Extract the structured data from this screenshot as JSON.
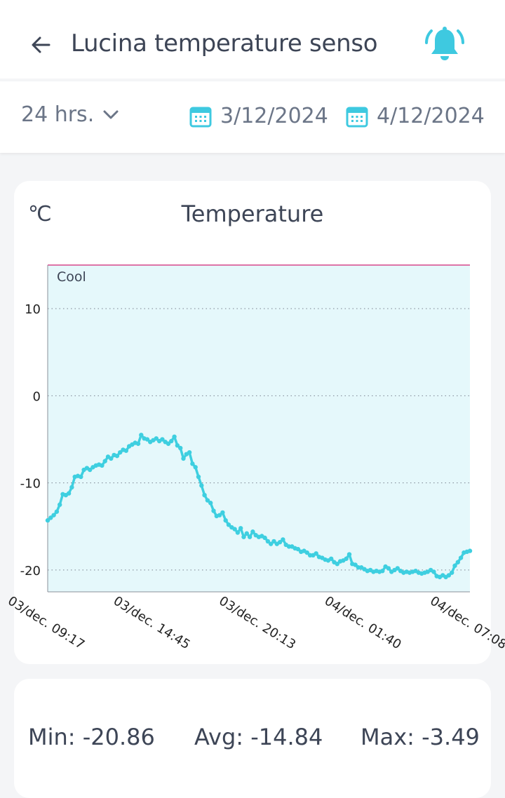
{
  "header": {
    "title": "Lucina temperature senso",
    "back_icon": "arrow-left-icon",
    "alert_icon": "bell-icon",
    "alert_color": "#3ec9e0"
  },
  "filters": {
    "range_label": "24 hrs.",
    "start_date": "3/12/2024",
    "end_date": "4/12/2024",
    "icon_color": "#3ec9e0"
  },
  "chart": {
    "unit": "℃",
    "title": "Temperature"
  },
  "chart_data": {
    "type": "line",
    "title": "Temperature",
    "ylabel": "℃",
    "ylim": [
      -22.5,
      15
    ],
    "yticks": [
      10,
      0,
      -10,
      -20
    ],
    "x_ticks": [
      "03/dec. 09:17",
      "03/dec. 14:45",
      "03/dec. 20:13",
      "04/dec. 01:40",
      "04/dec. 07:08"
    ],
    "zone": {
      "label": "Cool",
      "from": -22.5,
      "to": 15,
      "fill": "#e5f8fb",
      "limit_line_color": "#d6478a"
    },
    "line_color": "#3ecfe0",
    "grid": "dotted horizontal",
    "series": [
      {
        "values": [
          -14.3,
          -14.0,
          -13.7,
          -13.3,
          -12.5,
          -11.3,
          -11.4,
          -11.2,
          -10.5,
          -9.3,
          -9.2,
          -9.3,
          -8.5,
          -8.3,
          -8.5,
          -8.2,
          -8.0,
          -7.9,
          -8.0,
          -7.5,
          -7.0,
          -7.2,
          -6.8,
          -6.9,
          -6.5,
          -6.2,
          -6.3,
          -5.8,
          -5.6,
          -5.4,
          -5.5,
          -4.5,
          -4.9,
          -5.0,
          -5.3,
          -5.1,
          -4.9,
          -5.2,
          -5.0,
          -5.3,
          -5.5,
          -5.2,
          -4.7,
          -5.7,
          -6.0,
          -7.2,
          -6.7,
          -6.5,
          -7.8,
          -8.2,
          -9.3,
          -10.3,
          -11.4,
          -12.0,
          -12.3,
          -13.2,
          -13.8,
          -13.7,
          -13.4,
          -14.3,
          -14.8,
          -15.1,
          -15.3,
          -15.7,
          -15.2,
          -16.2,
          -15.8,
          -16.2,
          -15.6,
          -16.0,
          -16.2,
          -16.1,
          -16.3,
          -16.7,
          -17.0,
          -16.7,
          -17.0,
          -16.8,
          -16.5,
          -17.1,
          -17.3,
          -17.3,
          -17.5,
          -17.6,
          -17.9,
          -17.8,
          -18.0,
          -18.3,
          -18.3,
          -18.1,
          -18.5,
          -18.6,
          -18.8,
          -18.9,
          -18.7,
          -19.1,
          -19.3,
          -19.0,
          -18.9,
          -18.7,
          -18.2,
          -19.3,
          -19.4,
          -19.7,
          -19.7,
          -19.9,
          -20.1,
          -20.0,
          -20.2,
          -20.1,
          -20.2,
          -20.1,
          -19.6,
          -19.8,
          -20.2,
          -20.0,
          -19.8,
          -20.1,
          -20.3,
          -20.2,
          -20.3,
          -20.2,
          -20.1,
          -20.3,
          -20.4,
          -20.3,
          -20.2,
          -20.0,
          -20.2,
          -20.7,
          -20.8,
          -20.6,
          -20.8,
          -20.6,
          -20.3,
          -19.5,
          -19.1,
          -18.6,
          -18.0,
          -17.9,
          -17.8
        ]
      }
    ]
  },
  "stats": {
    "min": "Min: -20.86",
    "avg": "Avg: -14.84",
    "max": "Max: -3.49"
  }
}
